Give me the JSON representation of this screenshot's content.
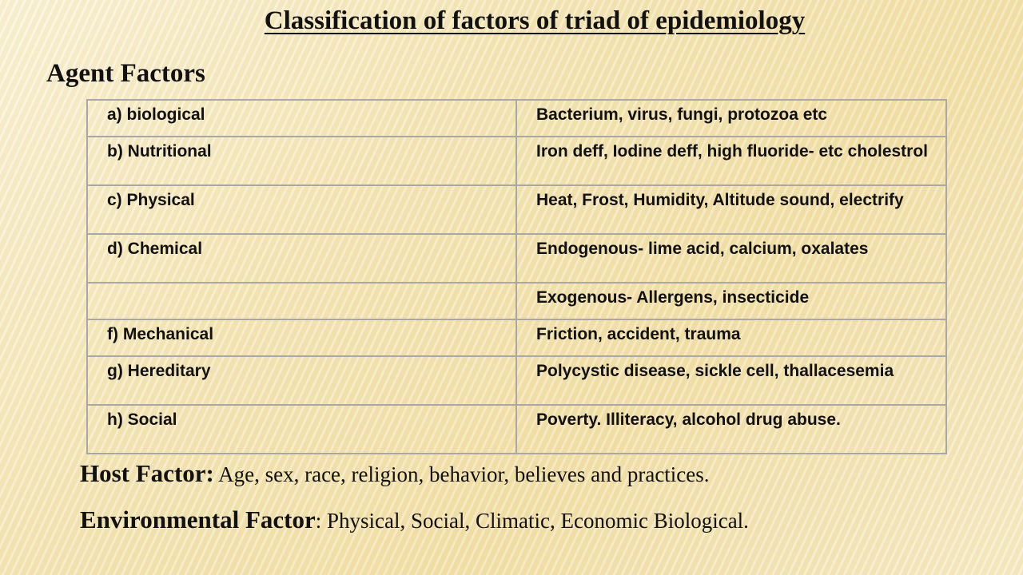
{
  "title": "Classification of factors of triad of epidemiology",
  "agent_heading": "Agent Factors",
  "agent_rows": [
    {
      "category": "a) biological",
      "examples": "Bacterium, virus, fungi, protozoa etc"
    },
    {
      "category": "b) Nutritional",
      "examples": "Iron deff, Iodine deff, high fluoride- etc cholestrol"
    },
    {
      "category": "c) Physical",
      "examples": "Heat, Frost, Humidity, Altitude sound, electrify"
    },
    {
      "category": "d) Chemical",
      "examples": "Endogenous- lime acid, calcium, oxalates"
    },
    {
      "category": "",
      "examples": "Exogenous- Allergens, insecticide"
    },
    {
      "category": "f) Mechanical",
      "examples": "Friction, accident, trauma"
    },
    {
      "category": "g) Hereditary",
      "examples": "Polycystic disease, sickle cell, thallacesemia"
    },
    {
      "category": "h) Social",
      "examples": "Poverty. Illiteracy, alcohol drug abuse."
    }
  ],
  "host": {
    "label": "Host Factor:",
    "text": " Age, sex, race, religion, behavior, believes and practices."
  },
  "environment": {
    "label": "Environmental Factor",
    "text": ": Physical, Social, Climatic, Economic Biological."
  }
}
